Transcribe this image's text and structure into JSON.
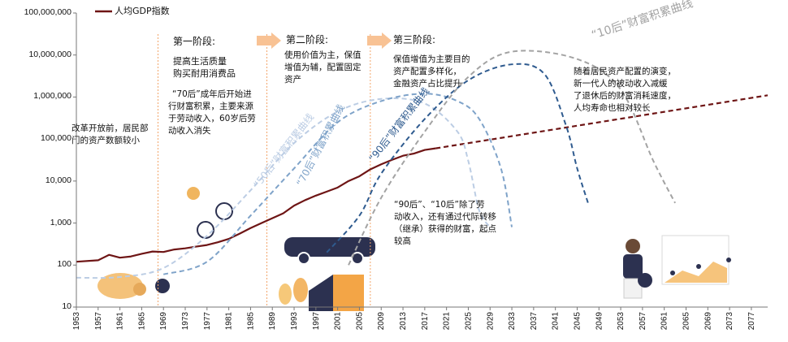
{
  "colors": {
    "gdp": "#6e1515",
    "c50": "#bccde4",
    "c70": "#7fa3c9",
    "c90": "#2f5b8f",
    "c10": "#a3a3a3",
    "phase_line": "#f3a56a",
    "arrow": "#f8c294"
  },
  "legend": {
    "label": "人均GDP指数"
  },
  "curve_labels": {
    "c10": "“10后”财富积累曲线",
    "c50": "“50后”财富积累曲线",
    "c70": "“70后”财富积累曲线",
    "c90": "“90后”财富积累曲线"
  },
  "phases": {
    "p1_title": "第一阶段:",
    "p1_goal_1": "提高生活质量",
    "p1_goal_2": "购买耐用消费品",
    "p1_desc_1": "“70后”成年后开始进",
    "p1_desc_2": "行财富积累，主要来源",
    "p1_desc_3": "于劳动收入，60岁后劳",
    "p1_desc_4": "动收入消失",
    "p2_title": "第二阶段:",
    "p2_desc_1": "使用价值为主，保值",
    "p2_desc_2": "增值为辅，配置固定",
    "p2_desc_3": "资产",
    "p3_title": "第三阶段:",
    "p3_desc_1": "保值增值为主要目的",
    "p3_desc_2": "资产配置多样化，",
    "p3_desc_3": "金融资产占比提升"
  },
  "notes": {
    "left_1": "改革开放前，居民部",
    "left_2": "门的资产数额较小",
    "mid_1": "“90后”、“10后”除了劳",
    "mid_2": "动收入，还有通过代际转移",
    "mid_3": "（继承）获得的财富，起点",
    "mid_4": "较高",
    "right_1": "随着居民资产配置的演变，",
    "right_2": "新一代人的被动收入减缓",
    "right_3": "了退休后的财富消耗速度，",
    "right_4": "人均寿命也相对较长"
  },
  "chart_data": {
    "type": "line",
    "title": "",
    "xlabel": "",
    "ylabel": "",
    "y_scale": "log",
    "ylim": [
      10,
      100000000
    ],
    "y_ticks": [
      "10",
      "100",
      "1,000",
      "10,000",
      "100,000",
      "1,000,000",
      "10,000,000",
      "100,000,000"
    ],
    "y_tick_values": [
      10,
      100,
      1000,
      10000,
      100000,
      1000000,
      10000000,
      100000000
    ],
    "xlim": [
      1953,
      2080
    ],
    "x_ticks": [
      "1953",
      "1957",
      "1961",
      "1965",
      "1969",
      "1973",
      "1977",
      "1981",
      "1985",
      "1989",
      "1993",
      "1997",
      "2001",
      "2005",
      "2009",
      "2013",
      "2017",
      "2021",
      "2025",
      "2029",
      "2033",
      "2037",
      "2041",
      "2045",
      "2049",
      "2053",
      "2057",
      "2061",
      "2065",
      "2069",
      "2073",
      "2077"
    ],
    "phase_boundaries": [
      1968,
      1988,
      2007
    ],
    "series": [
      {
        "name": "人均GDP指数",
        "style": "solid",
        "points": [
          [
            1953,
            120
          ],
          [
            1957,
            130
          ],
          [
            1959,
            175
          ],
          [
            1961,
            150
          ],
          [
            1963,
            160
          ],
          [
            1965,
            185
          ],
          [
            1967,
            210
          ],
          [
            1969,
            205
          ],
          [
            1971,
            235
          ],
          [
            1973,
            250
          ],
          [
            1975,
            275
          ],
          [
            1977,
            300
          ],
          [
            1979,
            350
          ],
          [
            1981,
            420
          ],
          [
            1983,
            560
          ],
          [
            1985,
            760
          ],
          [
            1987,
            1000
          ],
          [
            1989,
            1300
          ],
          [
            1991,
            1700
          ],
          [
            1993,
            2600
          ],
          [
            1995,
            3500
          ],
          [
            1997,
            4500
          ],
          [
            1999,
            5600
          ],
          [
            2001,
            7000
          ],
          [
            2003,
            10000
          ],
          [
            2005,
            13000
          ],
          [
            2007,
            19000
          ],
          [
            2009,
            25000
          ],
          [
            2011,
            32000
          ],
          [
            2013,
            40000
          ],
          [
            2015,
            45000
          ],
          [
            2017,
            55000
          ],
          [
            2019,
            60000
          ]
        ]
      },
      {
        "name": "人均GDP指数 (projection)",
        "style": "dashed",
        "points": [
          [
            2019,
            60000
          ],
          [
            2080,
            1100000
          ]
        ]
      },
      {
        "name": "“50后”财富积累曲线",
        "style": "dashed",
        "points": [
          [
            1953,
            50
          ],
          [
            1961,
            52
          ],
          [
            1969,
            85
          ],
          [
            1977,
            500
          ],
          [
            1985,
            6000
          ],
          [
            1993,
            80000
          ],
          [
            2001,
            450000
          ],
          [
            2009,
            900000
          ],
          [
            2017,
            700000
          ],
          [
            2023,
            150000
          ],
          [
            2025,
            30000
          ],
          [
            2027,
            2000
          ],
          [
            2029,
            800
          ]
        ]
      },
      {
        "name": "“70后”财富积累曲线",
        "style": "dashed",
        "points": [
          [
            1969,
            60
          ],
          [
            1977,
            120
          ],
          [
            1985,
            1500
          ],
          [
            1993,
            20000
          ],
          [
            2001,
            250000
          ],
          [
            2009,
            800000
          ],
          [
            2017,
            1200000
          ],
          [
            2023,
            800000
          ],
          [
            2027,
            300000
          ],
          [
            2031,
            20000
          ],
          [
            2033,
            800
          ]
        ]
      },
      {
        "name": "“90后”财富积累曲线",
        "style": "dashed",
        "points": [
          [
            1999,
            200
          ],
          [
            2005,
            1500
          ],
          [
            2009,
            15000
          ],
          [
            2017,
            300000
          ],
          [
            2025,
            2500000
          ],
          [
            2033,
            6000000
          ],
          [
            2039,
            3500000
          ],
          [
            2043,
            200000
          ],
          [
            2045,
            20000
          ],
          [
            2047,
            3000
          ]
        ]
      },
      {
        "name": "“10后”财富积累曲线",
        "style": "dashed",
        "points": [
          [
            2003,
            100
          ],
          [
            2009,
            4000
          ],
          [
            2017,
            150000
          ],
          [
            2025,
            3000000
          ],
          [
            2033,
            12000000
          ],
          [
            2045,
            8000000
          ],
          [
            2053,
            1500000
          ],
          [
            2059,
            30000
          ],
          [
            2063,
            3000
          ]
        ]
      }
    ]
  }
}
